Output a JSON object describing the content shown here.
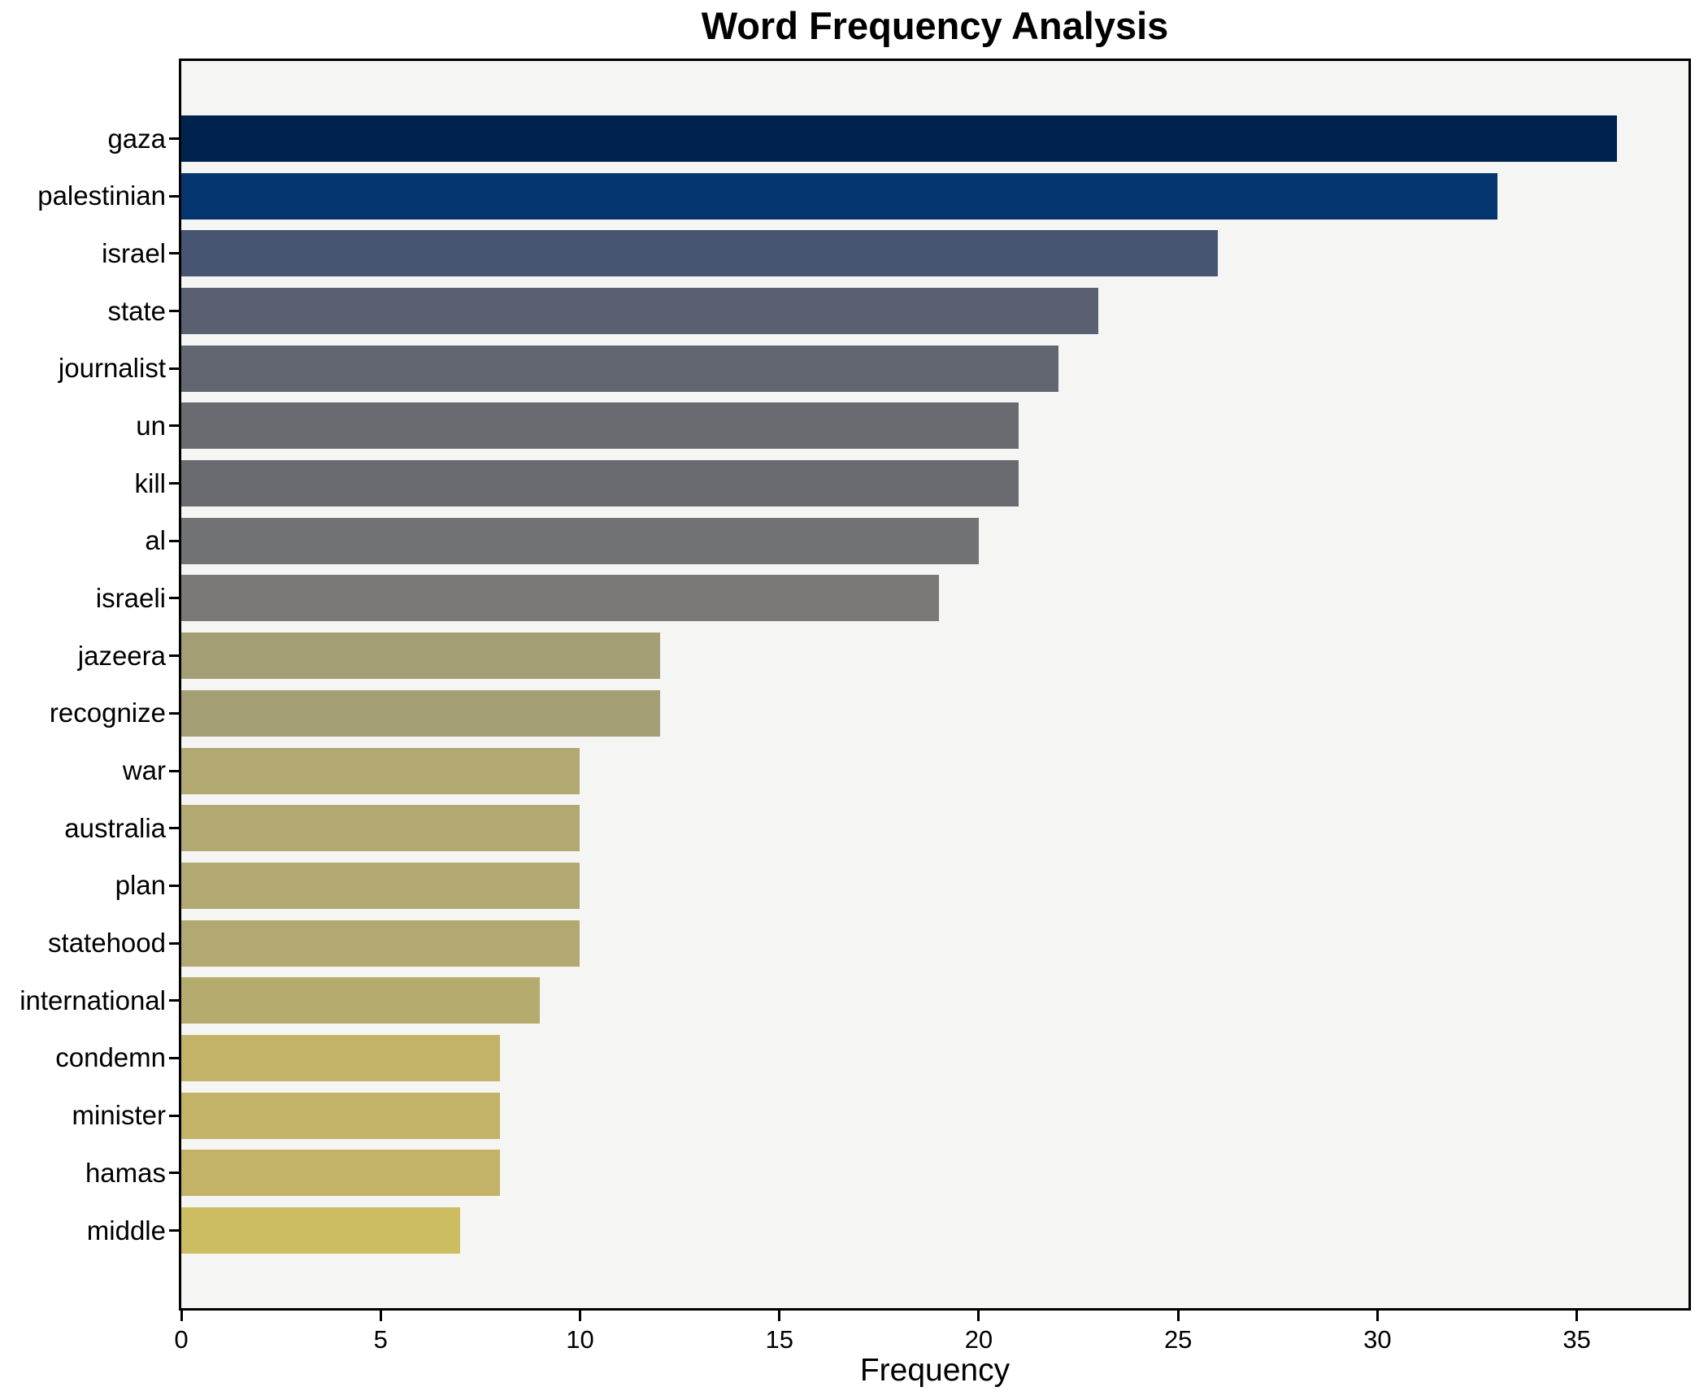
{
  "chart_data": {
    "type": "bar",
    "orientation": "horizontal",
    "title": "Word Frequency Analysis",
    "xlabel": "Frequency",
    "ylabel": "",
    "categories": [
      "gaza",
      "palestinian",
      "israel",
      "state",
      "journalist",
      "un",
      "kill",
      "al",
      "israeli",
      "jazeera",
      "recognize",
      "war",
      "australia",
      "plan",
      "statehood",
      "international",
      "condemn",
      "minister",
      "hamas",
      "middle"
    ],
    "values": [
      36,
      33,
      26,
      23,
      22,
      21,
      21,
      20,
      19,
      12,
      12,
      10,
      10,
      10,
      10,
      9,
      8,
      8,
      8,
      7
    ],
    "bar_colors": [
      "#00224e",
      "#05356f",
      "#475572",
      "#5a6070",
      "#626670",
      "#696b70",
      "#696b70",
      "#717274",
      "#7a7977",
      "#a49e75",
      "#a49e75",
      "#b2a972",
      "#b2a972",
      "#b2a972",
      "#b2a972",
      "#b6ab6e",
      "#c2b369",
      "#c2b369",
      "#c2b369",
      "#ccbd63"
    ],
    "xlim": [
      0,
      37.8
    ],
    "xticks": [
      0,
      5,
      10,
      15,
      20,
      25,
      30,
      35
    ],
    "grid": false,
    "legend": null,
    "colormap": "cividis",
    "plot_background": "#f5f5f4",
    "figure_background": "#ffffff",
    "spine_color": "#000000",
    "bar_height_ratio": 0.8
  }
}
